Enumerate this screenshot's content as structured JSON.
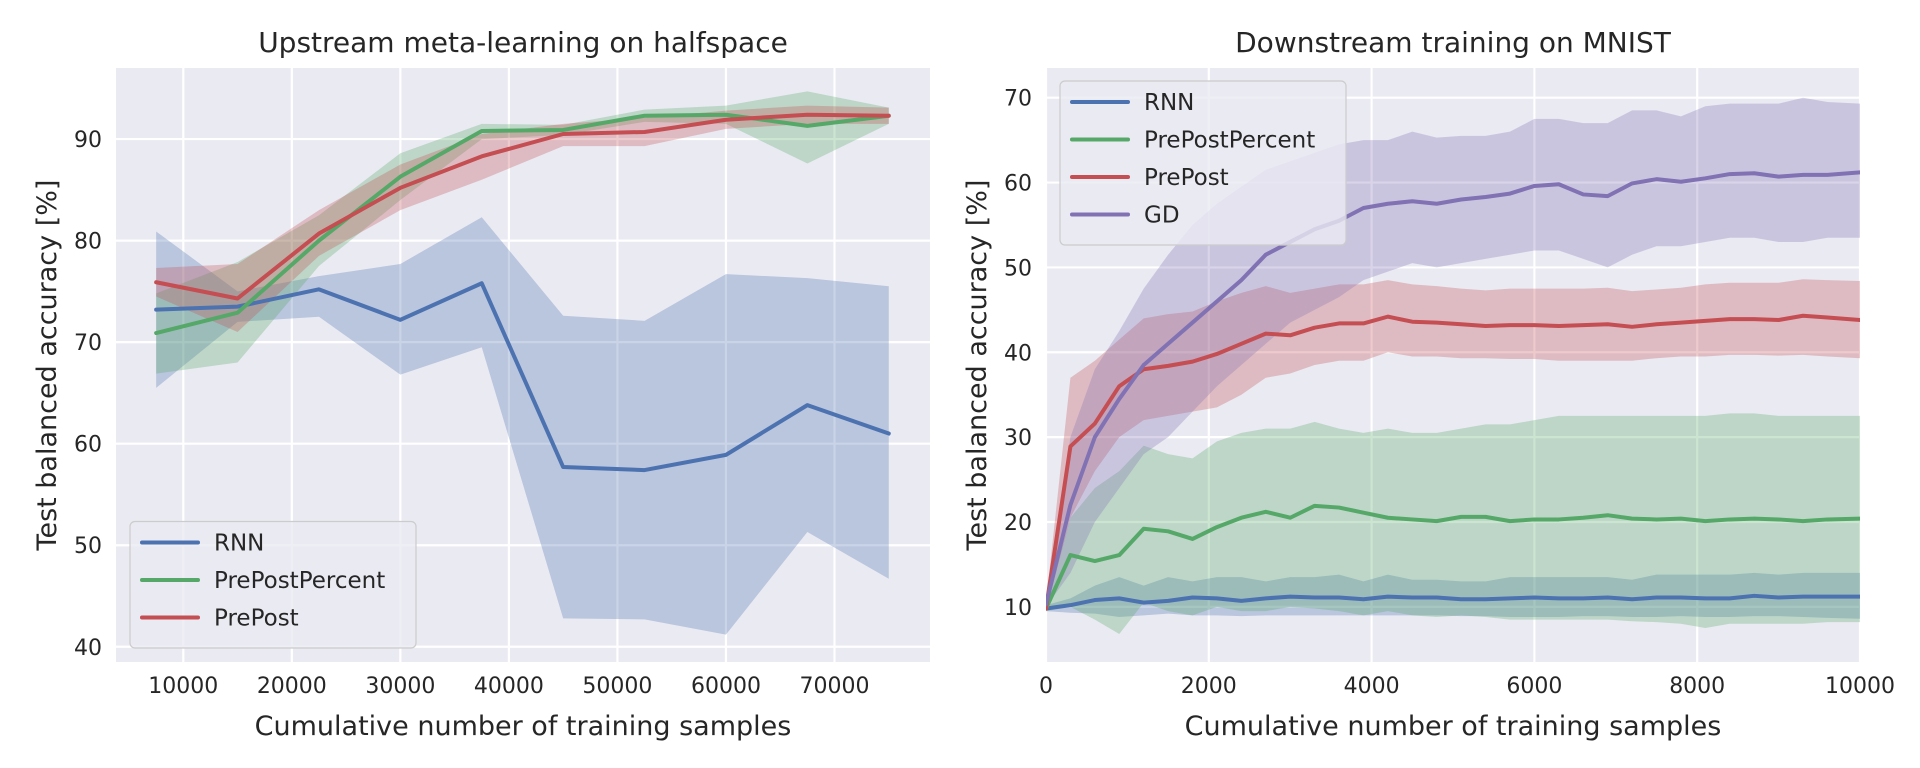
{
  "colors": {
    "background": "#eaeaf2",
    "grid": "#ffffff",
    "text": "#262626",
    "RNN": "#4c72b0",
    "PrePostPercent": "#55a868",
    "PrePost": "#c44e52",
    "GD": "#8172b3"
  },
  "chart_data": [
    {
      "type": "line",
      "title": "Upstream meta-learning on halfspace",
      "xlabel": "Cumulative number of training samples",
      "ylabel": "Test balanced accuracy [%]",
      "xlim": [
        3800,
        78800
      ],
      "ylim": [
        38.5,
        97
      ],
      "xticks": [
        10000,
        20000,
        30000,
        40000,
        50000,
        60000,
        70000
      ],
      "yticks": [
        40,
        50,
        60,
        70,
        80,
        90
      ],
      "grid": true,
      "legend_position": "lower-left",
      "x": [
        7500,
        15000,
        22500,
        30000,
        37500,
        45000,
        52500,
        60000,
        67500,
        75000
      ],
      "series": [
        {
          "name": "RNN",
          "values": [
            73.2,
            73.5,
            75.2,
            72.2,
            75.8,
            57.7,
            57.4,
            58.9,
            63.8,
            61.0
          ],
          "lower": [
            65.5,
            72.0,
            72.5,
            66.8,
            69.5,
            42.8,
            42.7,
            41.2,
            51.3,
            46.7
          ],
          "upper": [
            80.9,
            75.0,
            76.5,
            77.7,
            82.3,
            72.6,
            72.1,
            76.7,
            76.3,
            75.5
          ]
        },
        {
          "name": "PrePostPercent",
          "values": [
            70.9,
            72.9,
            80.0,
            86.3,
            90.8,
            90.9,
            92.3,
            92.4,
            91.3,
            92.3
          ],
          "lower": [
            66.9,
            68.0,
            77.5,
            84.0,
            90.0,
            90.4,
            91.7,
            91.5,
            87.6,
            91.5
          ],
          "upper": [
            74.8,
            77.9,
            82.5,
            88.6,
            91.5,
            91.4,
            92.9,
            93.3,
            94.7,
            93.1
          ]
        },
        {
          "name": "PrePost",
          "values": [
            75.9,
            74.3,
            80.7,
            85.2,
            88.3,
            90.5,
            90.7,
            91.9,
            92.4,
            92.3
          ],
          "lower": [
            74.5,
            71.0,
            78.5,
            83.0,
            86.0,
            89.3,
            89.3,
            91.0,
            91.5,
            91.5
          ],
          "upper": [
            77.3,
            77.7,
            83.0,
            87.5,
            90.5,
            91.5,
            92.1,
            92.8,
            93.3,
            93.1
          ]
        }
      ]
    },
    {
      "type": "line",
      "title": "Downstream training on MNIST",
      "xlabel": "Cumulative number of training samples",
      "ylabel": "Test balanced accuracy [%]",
      "xlim": [
        0,
        10000
      ],
      "ylim": [
        3.5,
        73.5
      ],
      "xticks": [
        0,
        2000,
        4000,
        6000,
        8000,
        10000
      ],
      "yticks": [
        10,
        20,
        30,
        40,
        50,
        60,
        70
      ],
      "grid": true,
      "legend_position": "upper-left",
      "x": [
        0,
        300,
        600,
        900,
        1200,
        1500,
        1800,
        2100,
        2400,
        2700,
        3000,
        3300,
        3600,
        3900,
        4200,
        4500,
        4800,
        5100,
        5400,
        5700,
        6000,
        6300,
        6600,
        6900,
        7200,
        7500,
        7800,
        8100,
        8400,
        8700,
        9000,
        9300,
        9600,
        10000
      ],
      "series": [
        {
          "name": "RNN",
          "values": [
            9.8,
            10.2,
            10.8,
            11.0,
            10.5,
            10.7,
            11.1,
            11.0,
            10.7,
            11.0,
            11.2,
            11.1,
            11.1,
            10.9,
            11.2,
            11.1,
            11.1,
            10.9,
            10.9,
            11.0,
            11.1,
            11.0,
            11.0,
            11.1,
            10.9,
            11.1,
            11.1,
            11.0,
            11.0,
            11.3,
            11.1,
            11.2,
            11.2,
            11.2
          ],
          "lower": [
            9.5,
            9.3,
            9.2,
            8.8,
            9.0,
            9.2,
            9.0,
            9.0,
            8.9,
            9.0,
            9.0,
            9.0,
            9.0,
            9.0,
            9.0,
            9.0,
            9.0,
            8.9,
            8.9,
            8.8,
            8.8,
            8.8,
            8.9,
            8.9,
            8.8,
            8.8,
            8.9,
            8.8,
            8.8,
            8.9,
            8.9,
            8.8,
            8.7,
            8.6
          ],
          "upper": [
            10.2,
            11.0,
            12.5,
            13.5,
            12.5,
            13.5,
            13.0,
            13.5,
            13.5,
            13.0,
            13.5,
            13.5,
            13.8,
            13.0,
            13.8,
            13.2,
            13.2,
            13.0,
            13.0,
            13.5,
            13.5,
            13.5,
            13.5,
            13.5,
            13.2,
            13.8,
            13.8,
            13.8,
            13.8,
            14.0,
            13.8,
            14.0,
            14.0,
            14.0
          ]
        },
        {
          "name": "PrePostPercent",
          "values": [
            9.8,
            16.1,
            15.4,
            16.1,
            19.2,
            18.9,
            18.0,
            19.4,
            20.5,
            21.2,
            20.5,
            21.9,
            21.7,
            21.1,
            20.5,
            20.3,
            20.1,
            20.6,
            20.6,
            20.1,
            20.3,
            20.3,
            20.5,
            20.8,
            20.4,
            20.3,
            20.4,
            20.1,
            20.3,
            20.4,
            20.3,
            20.1,
            20.3,
            20.4
          ],
          "lower": [
            9.5,
            10.0,
            8.5,
            6.8,
            10.5,
            9.5,
            9.0,
            10.0,
            9.5,
            9.5,
            10.0,
            9.8,
            9.5,
            9.0,
            9.5,
            9.0,
            8.8,
            9.0,
            8.8,
            8.5,
            8.5,
            8.5,
            8.5,
            8.5,
            8.3,
            8.2,
            8.0,
            7.5,
            8.0,
            8.0,
            8.0,
            8.0,
            8.2,
            8.2
          ],
          "upper": [
            10.2,
            20.5,
            24.0,
            26.0,
            29.0,
            28.0,
            27.5,
            29.5,
            30.5,
            31.0,
            31.0,
            31.8,
            31.0,
            30.5,
            31.0,
            30.5,
            30.5,
            31.0,
            31.5,
            31.5,
            32.0,
            32.5,
            32.5,
            32.5,
            32.5,
            32.5,
            32.5,
            32.5,
            32.8,
            32.8,
            32.5,
            32.5,
            32.5,
            32.5
          ]
        },
        {
          "name": "PrePost",
          "values": [
            9.8,
            28.9,
            31.6,
            36.0,
            38.0,
            38.4,
            38.9,
            39.8,
            41.0,
            42.2,
            42.0,
            42.9,
            43.4,
            43.4,
            44.2,
            43.6,
            43.5,
            43.3,
            43.1,
            43.2,
            43.2,
            43.1,
            43.2,
            43.3,
            43.0,
            43.3,
            43.5,
            43.7,
            43.9,
            43.9,
            43.8,
            44.3,
            44.1,
            43.8
          ],
          "lower": [
            9.5,
            20.5,
            26.0,
            30.0,
            32.0,
            32.5,
            33.0,
            33.5,
            35.0,
            37.0,
            37.5,
            38.5,
            39.0,
            39.0,
            40.0,
            39.5,
            39.5,
            39.3,
            39.3,
            39.2,
            39.2,
            39.0,
            39.0,
            39.0,
            39.0,
            39.3,
            39.5,
            39.5,
            39.7,
            39.7,
            39.6,
            39.7,
            39.5,
            39.3
          ],
          "upper": [
            10.5,
            37.0,
            39.0,
            41.5,
            44.0,
            44.5,
            44.8,
            46.0,
            47.0,
            47.8,
            47.0,
            47.5,
            48.0,
            48.0,
            48.5,
            48.0,
            47.8,
            47.5,
            47.3,
            47.5,
            47.5,
            47.5,
            47.5,
            47.6,
            47.2,
            47.4,
            47.6,
            48.0,
            48.2,
            48.2,
            48.2,
            48.6,
            48.5,
            48.4
          ]
        },
        {
          "name": "GD",
          "values": [
            10.3,
            22.0,
            30.0,
            34.5,
            38.5,
            41.0,
            43.5,
            46.0,
            48.5,
            51.5,
            53.0,
            54.5,
            55.5,
            57.0,
            57.5,
            57.8,
            57.5,
            58.0,
            58.3,
            58.7,
            59.6,
            59.8,
            58.6,
            58.4,
            59.9,
            60.4,
            60.1,
            60.5,
            61.0,
            61.1,
            60.7,
            60.9,
            60.9,
            61.2
          ],
          "lower": [
            10.0,
            14.0,
            20.0,
            24.0,
            28.0,
            30.0,
            33.0,
            36.0,
            38.5,
            41.0,
            43.5,
            45.0,
            46.5,
            48.5,
            49.5,
            50.5,
            50.0,
            50.5,
            51.0,
            51.5,
            52.0,
            52.0,
            51.0,
            50.0,
            51.5,
            52.5,
            52.5,
            53.0,
            53.5,
            53.5,
            53.0,
            53.0,
            53.5,
            53.5
          ],
          "upper": [
            10.5,
            30.0,
            38.0,
            42.5,
            47.5,
            51.5,
            55.0,
            57.5,
            59.5,
            61.5,
            62.5,
            63.5,
            64.5,
            65.0,
            65.0,
            66.0,
            65.3,
            65.5,
            65.5,
            66.0,
            67.5,
            67.5,
            67.0,
            67.0,
            68.5,
            68.5,
            67.8,
            69.0,
            69.3,
            69.3,
            69.3,
            70.0,
            69.5,
            69.3
          ]
        }
      ]
    }
  ]
}
